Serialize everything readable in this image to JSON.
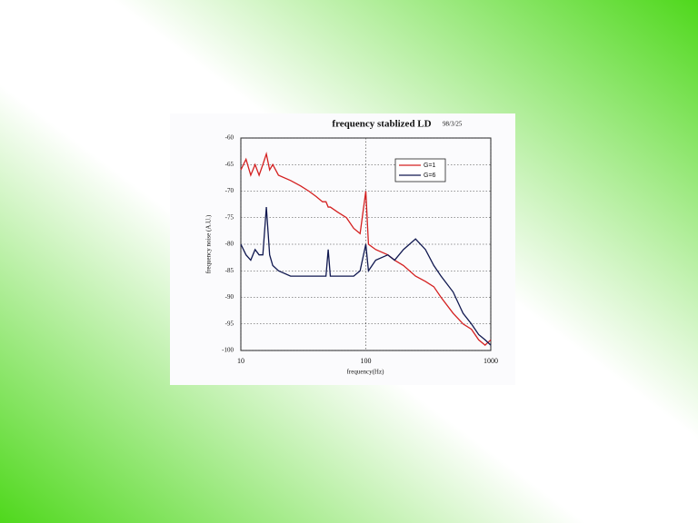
{
  "chart_data": {
    "type": "line",
    "title": "frequency  stablized  LD",
    "annotation": "98/3/25",
    "x_label": "frequency(Hz)",
    "y_label": "frequency noise (A.U.)",
    "xscale": "log",
    "grid": true,
    "legend": "upper right",
    "x": [
      10,
      11,
      12,
      13,
      14,
      15,
      16,
      17,
      18,
      20,
      25,
      30,
      35,
      40,
      45,
      48,
      50,
      52,
      60,
      70,
      80,
      90,
      100,
      105,
      120,
      150,
      170,
      200,
      250,
      300,
      350,
      400,
      500,
      600,
      700,
      800,
      900,
      1000
    ],
    "series": [
      {
        "name": "G=1",
        "color": "#d42020",
        "values": [
          -66,
          -64,
          -67,
          -65,
          -67,
          -65,
          -63,
          -66,
          -65,
          -67,
          -68,
          -69,
          -70,
          -71,
          -72,
          -72,
          -73,
          -73,
          -74,
          -75,
          -77,
          -78,
          -70,
          -80,
          -81,
          -82,
          -83,
          -84,
          -86,
          -87,
          -88,
          -90,
          -93,
          -95,
          -96,
          -98,
          -99,
          -98
        ]
      },
      {
        "name": "G=6",
        "color": "#101850",
        "values": [
          -80,
          -82,
          -83,
          -81,
          -82,
          -82,
          -73,
          -82,
          -84,
          -85,
          -86,
          -86,
          -86,
          -86,
          -86,
          -86,
          -81,
          -86,
          -86,
          -86,
          -86,
          -85,
          -80,
          -85,
          -83,
          -82,
          -83,
          -81,
          -79,
          -81,
          -84,
          -86,
          -89,
          -93,
          -95,
          -97,
          -98,
          -99
        ]
      }
    ],
    "xlim": [
      10,
      1000
    ],
    "xticks": [
      10,
      100,
      1000
    ],
    "ylim": [
      -100,
      -60
    ],
    "yticks": [
      -60,
      -65,
      -70,
      -75,
      -80,
      -85,
      -90,
      -95,
      -100
    ]
  }
}
